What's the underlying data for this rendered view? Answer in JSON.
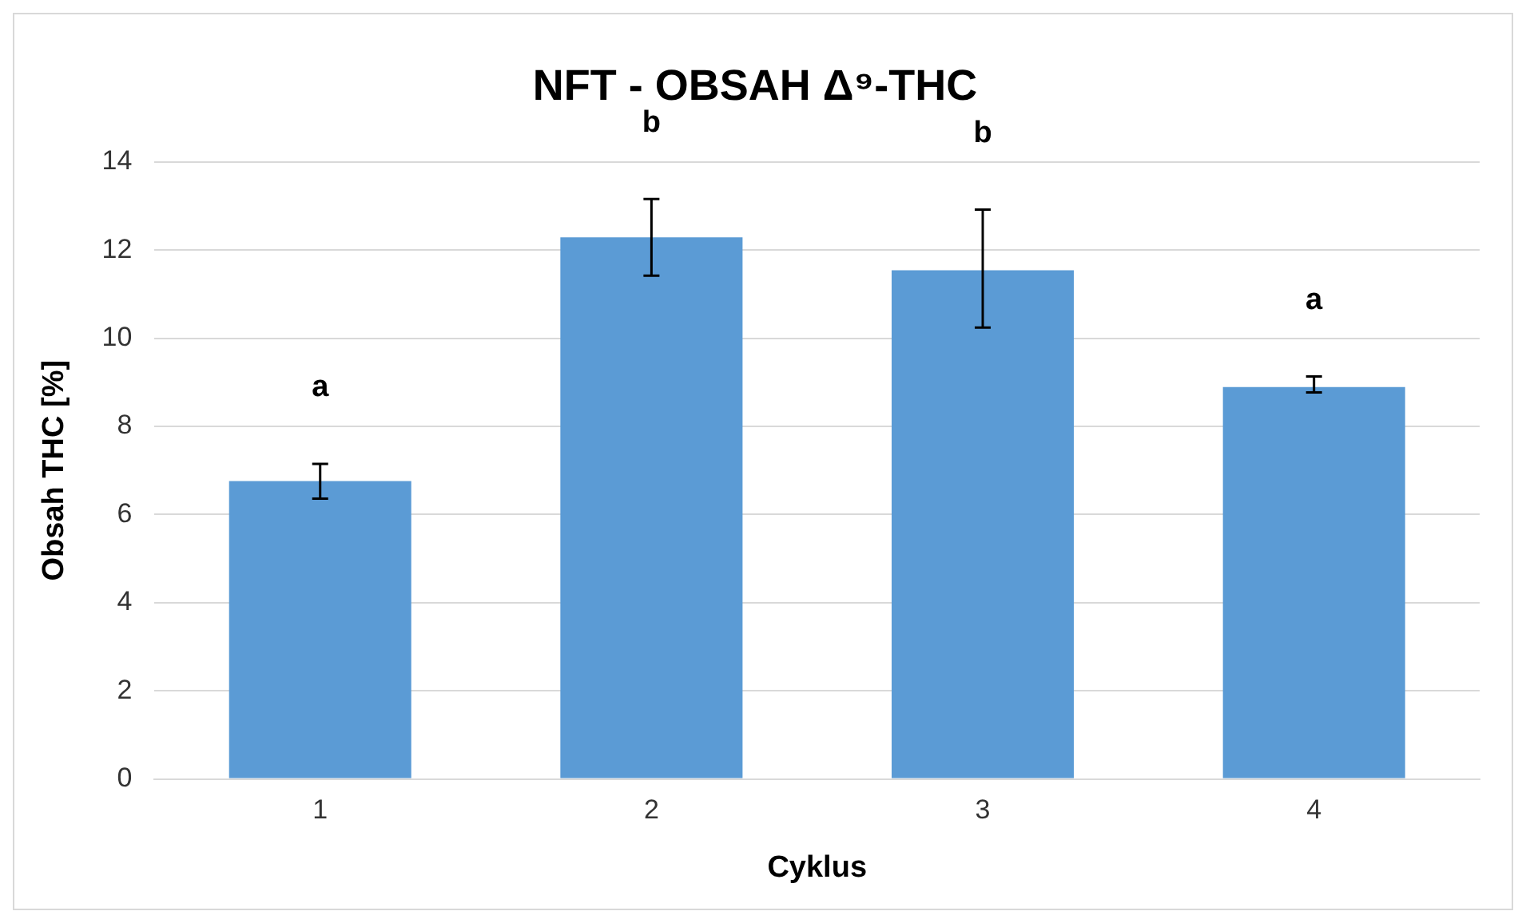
{
  "chart_data": {
    "type": "bar",
    "title": "NFT - OBSAH Δ⁹-THC",
    "xlabel": "Cyklus",
    "ylabel": "Obsah THC [%]",
    "categories": [
      "1",
      "2",
      "3",
      "4"
    ],
    "values": [
      6.76,
      12.29,
      11.54,
      8.89
    ],
    "errors": [
      [
        6.36,
        7.15
      ],
      [
        11.42,
        13.16
      ],
      [
        10.24,
        12.92
      ],
      [
        8.77,
        9.13
      ]
    ],
    "color": "#5b9bd5",
    "ylim": [
      0,
      14
    ],
    "yticks": [
      0,
      2,
      4,
      6,
      8,
      10,
      12,
      14
    ],
    "grid": "y",
    "legend": false,
    "annotations": [
      "a",
      "b",
      "b",
      "a"
    ]
  }
}
